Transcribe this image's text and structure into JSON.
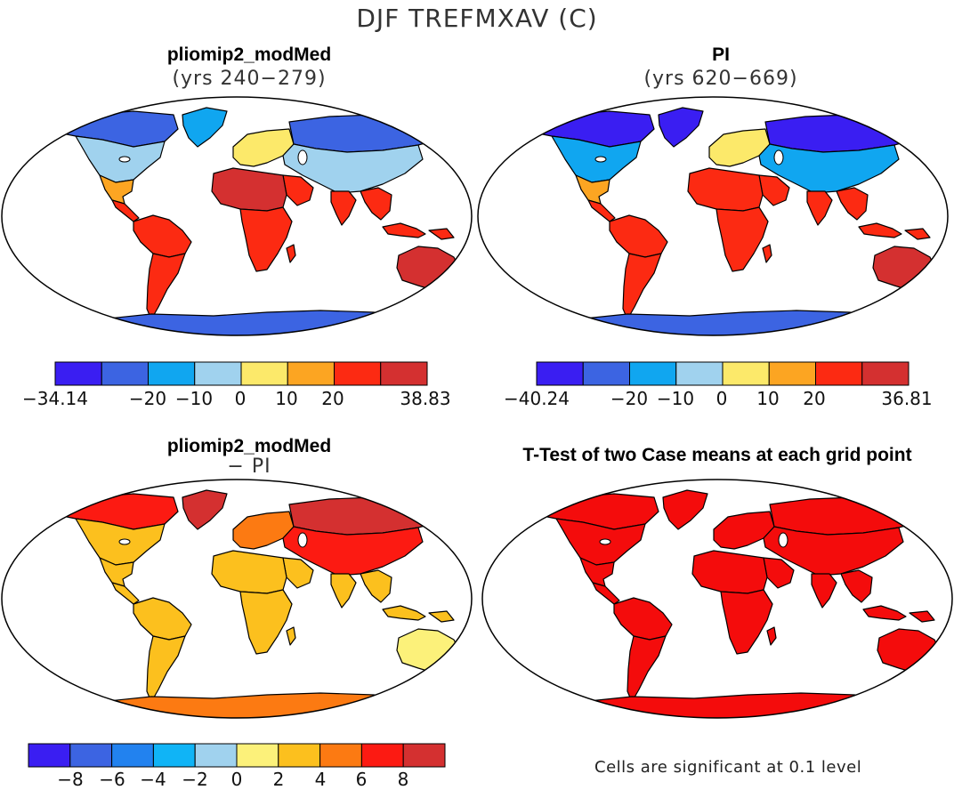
{
  "figure": {
    "title": "DJF TREFMXAV (C)",
    "panels": [
      {
        "id": "modmed",
        "title": "pliomip2_modMed",
        "subtitle": "(yrs 240−279)",
        "colorbar": {
          "colors": [
            "#3a1ef2",
            "#3c64e2",
            "#10a6f0",
            "#a0d2ee",
            "#fce96a",
            "#fca522",
            "#fc2a12",
            "#d43030"
          ],
          "end_labels": [
            "−34.14",
            "38.83"
          ],
          "inner_labels": [
            "−20",
            "−10",
            "0",
            "10",
            "20"
          ],
          "min": -34.14,
          "max": 38.83
        }
      },
      {
        "id": "pi",
        "title": "PI",
        "subtitle": "(yrs 620−669)",
        "colorbar": {
          "colors": [
            "#3a1ef2",
            "#3c64e2",
            "#10a6f0",
            "#a0d2ee",
            "#fce96a",
            "#fca522",
            "#fc2a12",
            "#d43030"
          ],
          "end_labels": [
            "−40.24",
            "36.81"
          ],
          "inner_labels": [
            "−20",
            "−10",
            "0",
            "10",
            "20"
          ],
          "min": -40.24,
          "max": 36.81
        }
      },
      {
        "id": "diff",
        "title": "pliomip2_modMed",
        "subtitle": "− PI",
        "colorbar": {
          "colors": [
            "#3a1ef2",
            "#3c64e2",
            "#2282ef",
            "#10b4f6",
            "#a0d2ee",
            "#fcf17a",
            "#fcc01e",
            "#fc7a12",
            "#fc1a12",
            "#d43030"
          ],
          "tick_labels": [
            "−8",
            "−6",
            "−4",
            "−2",
            "0",
            "2",
            "4",
            "6",
            "8"
          ]
        }
      },
      {
        "id": "ttest",
        "title": "T-Test of two Case means at each grid point",
        "note": "Cells are significant at 0.1 level",
        "significant_color": "#f40c0c"
      }
    ]
  }
}
